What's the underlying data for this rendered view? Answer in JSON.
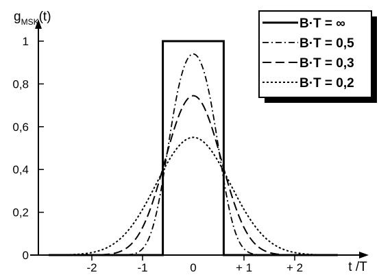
{
  "chart_data": {
    "type": "line",
    "ylabel_main": "g",
    "ylabel_sub": "MSK",
    "ylabel_arg": "(t)",
    "xlabel": "t /T",
    "xlim": [
      -2.85,
      2.85
    ],
    "ylim": [
      0,
      1.05
    ],
    "x_ticks": [
      {
        "value": -2,
        "label": "-2"
      },
      {
        "value": -1,
        "label": "-1"
      },
      {
        "value": 0,
        "label": "0"
      },
      {
        "value": 1,
        "label": "+ 1"
      },
      {
        "value": 2,
        "label": "+ 2"
      }
    ],
    "y_ticks": [
      {
        "value": 0,
        "label": "0"
      },
      {
        "value": 0.2,
        "label": "0,2"
      },
      {
        "value": 0.4,
        "label": "0,4"
      },
      {
        "value": 0.6,
        "label": "0,6"
      },
      {
        "value": 0.8,
        "label": "0,8"
      },
      {
        "value": 1,
        "label": "1"
      }
    ],
    "grid": false,
    "legend_position": "top-right",
    "series": [
      {
        "name": "B·T =  ∞",
        "bt": "inf",
        "style": "solid",
        "peak": 1.0
      },
      {
        "name": "B·T =  0,5",
        "bt": 0.5,
        "style": "dashdot",
        "peak": 0.94
      },
      {
        "name": "B·T =  0,3",
        "bt": 0.3,
        "style": "dashed",
        "peak": 0.745
      },
      {
        "name": "B·T =  0,2",
        "bt": 0.2,
        "style": "dotted",
        "peak": 0.55
      }
    ]
  }
}
